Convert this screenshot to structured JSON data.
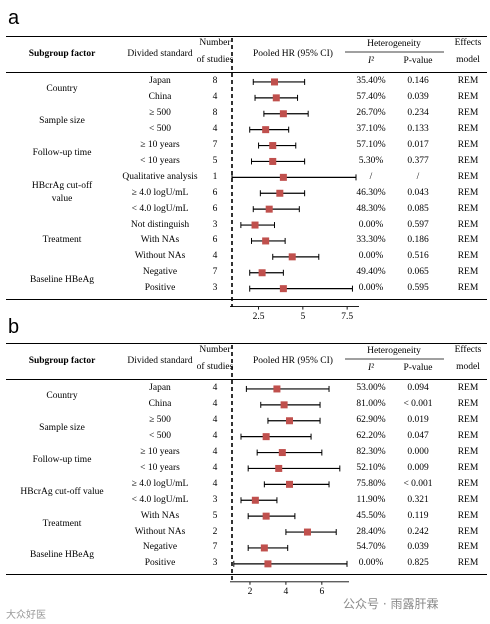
{
  "panels": [
    {
      "label": "a",
      "headers": {
        "subgroup": "Subgroup factor",
        "divided": "Divided standard",
        "number_line1": "Number",
        "number_line2": "of studies",
        "pooled": "Pooled HR (95% CI)",
        "heterogeneity": "Heterogeneity",
        "i2": "I²",
        "pvalue": "P-value",
        "effects_line1": "Effects",
        "effects_line2": "model"
      },
      "groups": [
        {
          "label_lines": [
            "Country"
          ],
          "rows": [
            0,
            1
          ]
        },
        {
          "label_lines": [
            "Sample size"
          ],
          "rows": [
            2,
            3
          ]
        },
        {
          "label_lines": [
            "Follow-up time"
          ],
          "rows": [
            4,
            5
          ]
        },
        {
          "label_lines": [
            "HBcrAg cut-off",
            "value"
          ],
          "rows": [
            6,
            7,
            8
          ]
        },
        {
          "label_lines": [
            "Treatment"
          ],
          "rows": [
            9,
            10,
            11
          ]
        },
        {
          "label_lines": [
            "Baseline HBeAg"
          ],
          "rows": [
            12,
            13
          ]
        }
      ],
      "rows": [
        {
          "standard": "Japan",
          "n": "8",
          "hr": 3.4,
          "lo": 2.2,
          "hi": 5.1,
          "i2": "35.40%",
          "p": "0.146",
          "model": "REM"
        },
        {
          "standard": "China",
          "n": "4",
          "hr": 3.5,
          "lo": 2.3,
          "hi": 4.7,
          "i2": "57.40%",
          "p": "0.039",
          "model": "REM"
        },
        {
          "standard": "≥ 500",
          "n": "8",
          "hr": 3.9,
          "lo": 2.8,
          "hi": 5.3,
          "i2": "26.70%",
          "p": "0.234",
          "model": "REM"
        },
        {
          "standard": "< 500",
          "n": "4",
          "hr": 2.9,
          "lo": 2.0,
          "hi": 4.2,
          "i2": "37.10%",
          "p": "0.133",
          "model": "REM"
        },
        {
          "standard": "≥ 10 years",
          "n": "7",
          "hr": 3.3,
          "lo": 2.5,
          "hi": 4.6,
          "i2": "57.10%",
          "p": "0.017",
          "model": "REM"
        },
        {
          "standard": "< 10 years",
          "n": "5",
          "hr": 3.3,
          "lo": 2.1,
          "hi": 5.1,
          "i2": "5.30%",
          "p": "0.377",
          "model": "REM"
        },
        {
          "standard": "Qualitative analysis",
          "n": "1",
          "hr": 3.9,
          "lo": 1.0,
          "hi": 8.0,
          "i2": "/",
          "p": "/",
          "model": "REM"
        },
        {
          "standard": "≥ 4.0 logU/mL",
          "n": "6",
          "hr": 3.7,
          "lo": 2.6,
          "hi": 5.1,
          "i2": "46.30%",
          "p": "0.043",
          "model": "REM"
        },
        {
          "standard": "< 4.0 logU/mL",
          "n": "6",
          "hr": 3.1,
          "lo": 2.2,
          "hi": 4.8,
          "i2": "48.30%",
          "p": "0.085",
          "model": "REM"
        },
        {
          "standard": "Not distinguish",
          "n": "3",
          "hr": 2.3,
          "lo": 1.5,
          "hi": 3.4,
          "i2": "0.00%",
          "p": "0.597",
          "model": "REM"
        },
        {
          "standard": "With NAs",
          "n": "6",
          "hr": 2.9,
          "lo": 2.1,
          "hi": 4.0,
          "i2": "33.30%",
          "p": "0.186",
          "model": "REM"
        },
        {
          "standard": "Without NAs",
          "n": "4",
          "hr": 4.4,
          "lo": 3.3,
          "hi": 5.9,
          "i2": "0.00%",
          "p": "0.516",
          "model": "REM"
        },
        {
          "standard": "Negative",
          "n": "7",
          "hr": 2.7,
          "lo": 2.0,
          "hi": 3.9,
          "i2": "49.40%",
          "p": "0.065",
          "model": "REM"
        },
        {
          "standard": "Positive",
          "n": "3",
          "hr": 3.9,
          "lo": 2.0,
          "hi": 7.8,
          "i2": "0.00%",
          "p": "0.595",
          "model": "REM"
        }
      ],
      "axis": {
        "min": 1.0,
        "max": 8.0,
        "ref": 1.0,
        "ticks": [
          2.5,
          5,
          7.5
        ],
        "tick_labels": [
          "2.5",
          "5",
          "7.5"
        ]
      }
    },
    {
      "label": "b",
      "headers": {
        "subgroup": "Subgroup factor",
        "divided": "Divided standard",
        "number_line1": "Number",
        "number_line2": "of studies",
        "pooled": "Pooled HR (95% CI)",
        "heterogeneity": "Heterogeneity",
        "i2": "I²",
        "pvalue": "P-value",
        "effects_line1": "Effects",
        "effects_line2": "model"
      },
      "groups": [
        {
          "label_lines": [
            "Country"
          ],
          "rows": [
            0,
            1
          ]
        },
        {
          "label_lines": [
            "Sample size"
          ],
          "rows": [
            2,
            3
          ]
        },
        {
          "label_lines": [
            "Follow-up time"
          ],
          "rows": [
            4,
            5
          ]
        },
        {
          "label_lines": [
            "HBcrAg cut-off value"
          ],
          "rows": [
            6,
            7
          ]
        },
        {
          "label_lines": [
            "Treatment"
          ],
          "rows": [
            8,
            9
          ]
        },
        {
          "label_lines": [
            "Baseline HBeAg"
          ],
          "rows": [
            10,
            11
          ]
        }
      ],
      "rows": [
        {
          "standard": "Japan",
          "n": "4",
          "hr": 3.5,
          "lo": 1.8,
          "hi": 6.4,
          "i2": "53.00%",
          "p": "0.094",
          "model": "REM"
        },
        {
          "standard": "China",
          "n": "4",
          "hr": 3.9,
          "lo": 2.6,
          "hi": 5.9,
          "i2": "81.00%",
          "p": "< 0.001",
          "model": "REM"
        },
        {
          "standard": "≥ 500",
          "n": "4",
          "hr": 4.2,
          "lo": 3.0,
          "hi": 5.9,
          "i2": "62.90%",
          "p": "0.019",
          "model": "REM"
        },
        {
          "standard": "< 500",
          "n": "4",
          "hr": 2.9,
          "lo": 1.5,
          "hi": 5.4,
          "i2": "62.20%",
          "p": "0.047",
          "model": "REM"
        },
        {
          "standard": "≥ 10 years",
          "n": "4",
          "hr": 3.8,
          "lo": 2.4,
          "hi": 6.0,
          "i2": "82.30%",
          "p": "0.000",
          "model": "REM"
        },
        {
          "standard": "< 10 years",
          "n": "4",
          "hr": 3.6,
          "lo": 1.9,
          "hi": 7.0,
          "i2": "52.10%",
          "p": "0.009",
          "model": "REM"
        },
        {
          "standard": "≥ 4.0 logU/mL",
          "n": "4",
          "hr": 4.2,
          "lo": 2.8,
          "hi": 6.4,
          "i2": "75.80%",
          "p": "< 0.001",
          "model": "REM"
        },
        {
          "standard": "< 4.0 logU/mL",
          "n": "3",
          "hr": 2.3,
          "lo": 1.5,
          "hi": 3.5,
          "i2": "11.90%",
          "p": "0.321",
          "model": "REM"
        },
        {
          "standard": "With NAs",
          "n": "5",
          "hr": 2.9,
          "lo": 1.9,
          "hi": 4.5,
          "i2": "45.50%",
          "p": "0.119",
          "model": "REM"
        },
        {
          "standard": "Without NAs",
          "n": "2",
          "hr": 5.2,
          "lo": 4.0,
          "hi": 6.8,
          "i2": "28.40%",
          "p": "0.242",
          "model": "REM"
        },
        {
          "standard": "Negative",
          "n": "7",
          "hr": 2.8,
          "lo": 1.9,
          "hi": 4.1,
          "i2": "54.70%",
          "p": "0.039",
          "model": "REM"
        },
        {
          "standard": "Positive",
          "n": "3",
          "hr": 3.0,
          "lo": 1.1,
          "hi": 7.4,
          "i2": "0.00%",
          "p": "0.825",
          "model": "REM"
        }
      ],
      "axis": {
        "min": 1.0,
        "max": 7.4,
        "ref": 1.0,
        "ticks": [
          2,
          4,
          6
        ],
        "tick_labels": [
          "2",
          "4",
          "6"
        ]
      }
    }
  ],
  "chart_data": [
    {
      "type": "forest",
      "categories": [
        "Japan",
        "China",
        "≥ 500",
        "< 500",
        "≥ 10 years",
        "< 10 years",
        "Qualitative analysis",
        "≥ 4.0 logU/mL",
        "< 4.0 logU/mL",
        "Not distinguish",
        "With NAs",
        "Without NAs",
        "Negative",
        "Positive"
      ],
      "values": [
        3.4,
        3.5,
        3.9,
        2.9,
        3.3,
        3.3,
        3.9,
        3.7,
        3.1,
        2.3,
        2.9,
        4.4,
        2.7,
        3.9
      ],
      "ci_low": [
        2.2,
        2.3,
        2.8,
        2.0,
        2.5,
        2.1,
        1.0,
        2.6,
        2.2,
        1.5,
        2.1,
        3.3,
        2.0,
        2.0
      ],
      "ci_high": [
        5.1,
        4.7,
        5.3,
        4.2,
        4.6,
        5.1,
        8.0,
        5.1,
        4.8,
        3.4,
        4.0,
        5.9,
        3.9,
        7.8
      ],
      "xlabel": "",
      "ylabel": "",
      "xlim": [
        1.0,
        8.0
      ]
    },
    {
      "type": "forest",
      "categories": [
        "Japan",
        "China",
        "≥ 500",
        "< 500",
        "≥ 10 years",
        "< 10 years",
        "≥ 4.0 logU/mL",
        "< 4.0 logU/mL",
        "With NAs",
        "Without NAs",
        "Negative",
        "Positive"
      ],
      "values": [
        3.5,
        3.9,
        4.2,
        2.9,
        3.8,
        3.6,
        4.2,
        2.3,
        2.9,
        5.2,
        2.8,
        3.0
      ],
      "ci_low": [
        1.8,
        2.6,
        3.0,
        1.5,
        2.4,
        1.9,
        2.8,
        1.5,
        1.9,
        4.0,
        1.9,
        1.1
      ],
      "ci_high": [
        6.4,
        5.9,
        5.9,
        5.4,
        6.0,
        7.0,
        6.4,
        3.5,
        4.5,
        6.8,
        4.1,
        7.4
      ],
      "xlabel": "",
      "ylabel": "",
      "xlim": [
        1.0,
        7.4
      ]
    }
  ],
  "watermarks": {
    "left": "大众好医",
    "right": "公众号 · 雨露肝霖"
  },
  "colors": {
    "marker": "#c0504d",
    "line": "#000000"
  }
}
